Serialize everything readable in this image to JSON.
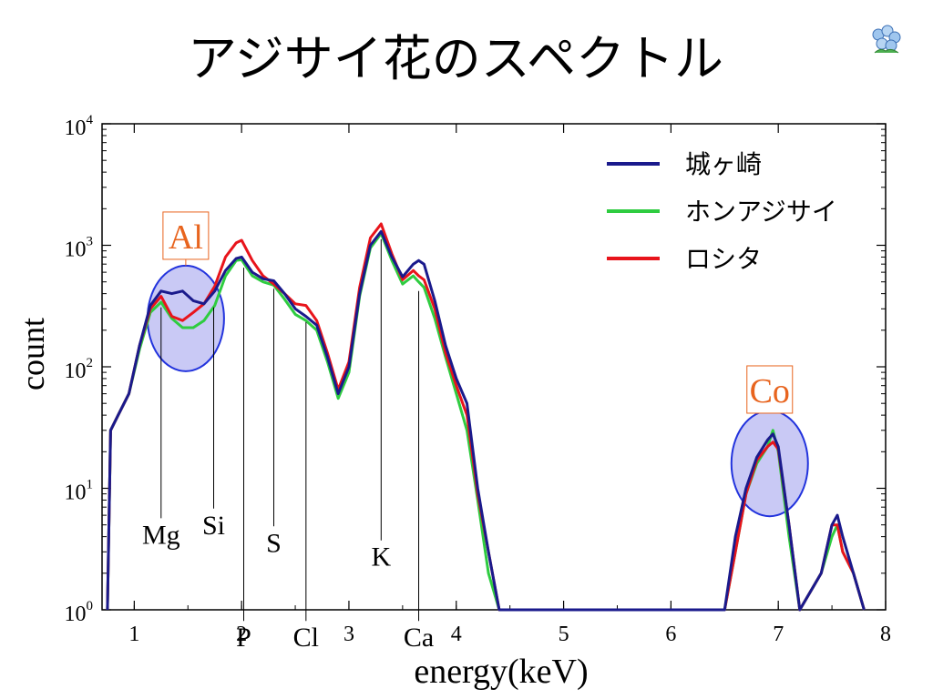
{
  "title": "アジサイ花のスペクトル",
  "colors": {
    "series1": "#1a1a8c",
    "series2": "#2ecc40",
    "series3": "#e8141b",
    "highlight": "#e8641e",
    "circle_fill": "#c9c9f5",
    "circle_stroke": "#2233dd"
  },
  "chart_data": {
    "type": "line",
    "title": "",
    "xlabel": "energy(keV)",
    "ylabel": "count",
    "xlim": [
      0.7,
      8.0
    ],
    "ylim": [
      1,
      10000
    ],
    "yscale": "log",
    "x_ticks": [
      "1",
      "2",
      "3",
      "4",
      "5",
      "6",
      "7",
      "8"
    ],
    "y_ticks": [
      {
        "base": "10",
        "exp": "0"
      },
      {
        "base": "10",
        "exp": "1"
      },
      {
        "base": "10",
        "exp": "2"
      },
      {
        "base": "10",
        "exp": "3"
      },
      {
        "base": "10",
        "exp": "4"
      }
    ],
    "legend_position": "top-right",
    "series": [
      {
        "name": "城ヶ崎",
        "color": "#1a1a8c",
        "x": [
          0.75,
          0.78,
          0.85,
          0.95,
          1.05,
          1.15,
          1.25,
          1.35,
          1.45,
          1.55,
          1.65,
          1.75,
          1.85,
          1.95,
          2.0,
          2.1,
          2.2,
          2.3,
          2.4,
          2.5,
          2.6,
          2.7,
          2.8,
          2.9,
          3.0,
          3.1,
          3.2,
          3.3,
          3.4,
          3.5,
          3.6,
          3.65,
          3.7,
          3.8,
          3.9,
          4.0,
          4.1,
          4.2,
          4.3,
          4.4,
          6.5,
          6.6,
          6.7,
          6.8,
          6.9,
          6.95,
          7.0,
          7.1,
          7.2,
          7.4,
          7.5,
          7.55,
          7.6,
          7.7,
          7.8
        ],
        "y": [
          1,
          30,
          40,
          60,
          150,
          320,
          420,
          400,
          420,
          350,
          330,
          420,
          620,
          780,
          800,
          600,
          530,
          510,
          400,
          300,
          260,
          220,
          120,
          60,
          100,
          400,
          1000,
          1300,
          800,
          550,
          700,
          750,
          700,
          350,
          150,
          80,
          50,
          10,
          3,
          1,
          1,
          4,
          10,
          18,
          25,
          28,
          22,
          5,
          1,
          2,
          5,
          6,
          4,
          2,
          1
        ]
      },
      {
        "name": "ホンアジサイ",
        "color": "#2ecc40",
        "x": [
          0.75,
          0.78,
          0.85,
          0.95,
          1.05,
          1.15,
          1.25,
          1.35,
          1.45,
          1.55,
          1.65,
          1.75,
          1.85,
          1.95,
          2.0,
          2.1,
          2.2,
          2.3,
          2.4,
          2.5,
          2.6,
          2.7,
          2.8,
          2.9,
          3.0,
          3.1,
          3.2,
          3.3,
          3.4,
          3.5,
          3.6,
          3.65,
          3.7,
          3.8,
          3.9,
          4.0,
          4.1,
          4.2,
          4.3,
          4.4,
          6.5,
          6.6,
          6.7,
          6.8,
          6.9,
          6.95,
          7.0,
          7.1,
          7.2,
          7.4,
          7.5,
          7.55,
          7.6,
          7.7,
          7.8
        ],
        "y": [
          1,
          30,
          40,
          60,
          140,
          280,
          340,
          250,
          210,
          210,
          240,
          320,
          560,
          750,
          760,
          560,
          500,
          470,
          360,
          270,
          240,
          200,
          110,
          55,
          90,
          380,
          950,
          1250,
          750,
          480,
          560,
          500,
          450,
          250,
          120,
          60,
          30,
          8,
          2,
          1,
          1,
          3,
          9,
          16,
          22,
          30,
          20,
          4,
          1,
          2,
          4,
          5,
          3,
          2,
          1
        ]
      },
      {
        "name": "ロシタ",
        "color": "#e8141b",
        "x": [
          0.75,
          0.78,
          0.85,
          0.95,
          1.05,
          1.15,
          1.25,
          1.35,
          1.45,
          1.55,
          1.65,
          1.75,
          1.85,
          1.95,
          2.0,
          2.1,
          2.2,
          2.3,
          2.4,
          2.5,
          2.6,
          2.7,
          2.8,
          2.9,
          3.0,
          3.1,
          3.2,
          3.3,
          3.4,
          3.5,
          3.6,
          3.65,
          3.7,
          3.8,
          3.9,
          4.0,
          4.1,
          4.2,
          4.3,
          4.4,
          6.5,
          6.6,
          6.7,
          6.8,
          6.9,
          6.95,
          7.0,
          7.1,
          7.2,
          7.4,
          7.5,
          7.55,
          7.6,
          7.7,
          7.8
        ],
        "y": [
          1,
          30,
          40,
          60,
          150,
          300,
          380,
          260,
          240,
          280,
          330,
          460,
          800,
          1050,
          1100,
          750,
          560,
          480,
          400,
          330,
          320,
          240,
          130,
          65,
          110,
          450,
          1150,
          1500,
          850,
          520,
          620,
          560,
          520,
          300,
          130,
          70,
          40,
          9,
          3,
          1,
          1,
          3,
          9,
          17,
          22,
          24,
          21,
          5,
          1,
          2,
          5,
          5,
          3,
          2,
          1
        ]
      }
    ],
    "annotations": [
      {
        "label": "Mg",
        "x": 1.25,
        "y": 3.5
      },
      {
        "label": "Si",
        "x": 1.74,
        "y": 4.2
      },
      {
        "label": "P",
        "x": 2.02,
        "y": 0.4
      },
      {
        "label": "S",
        "x": 2.3,
        "y": 3.0
      },
      {
        "label": "Cl",
        "x": 2.6,
        "y": 0.3
      },
      {
        "label": "K",
        "x": 3.3,
        "y": 2.3
      },
      {
        "label": "Ca",
        "x": 3.65,
        "y": 0.16
      }
    ],
    "highlight_boxes": [
      {
        "label": "Al",
        "x": 1.48,
        "y": 1200
      },
      {
        "label": "Co",
        "x": 6.92,
        "y": 65
      }
    ]
  }
}
